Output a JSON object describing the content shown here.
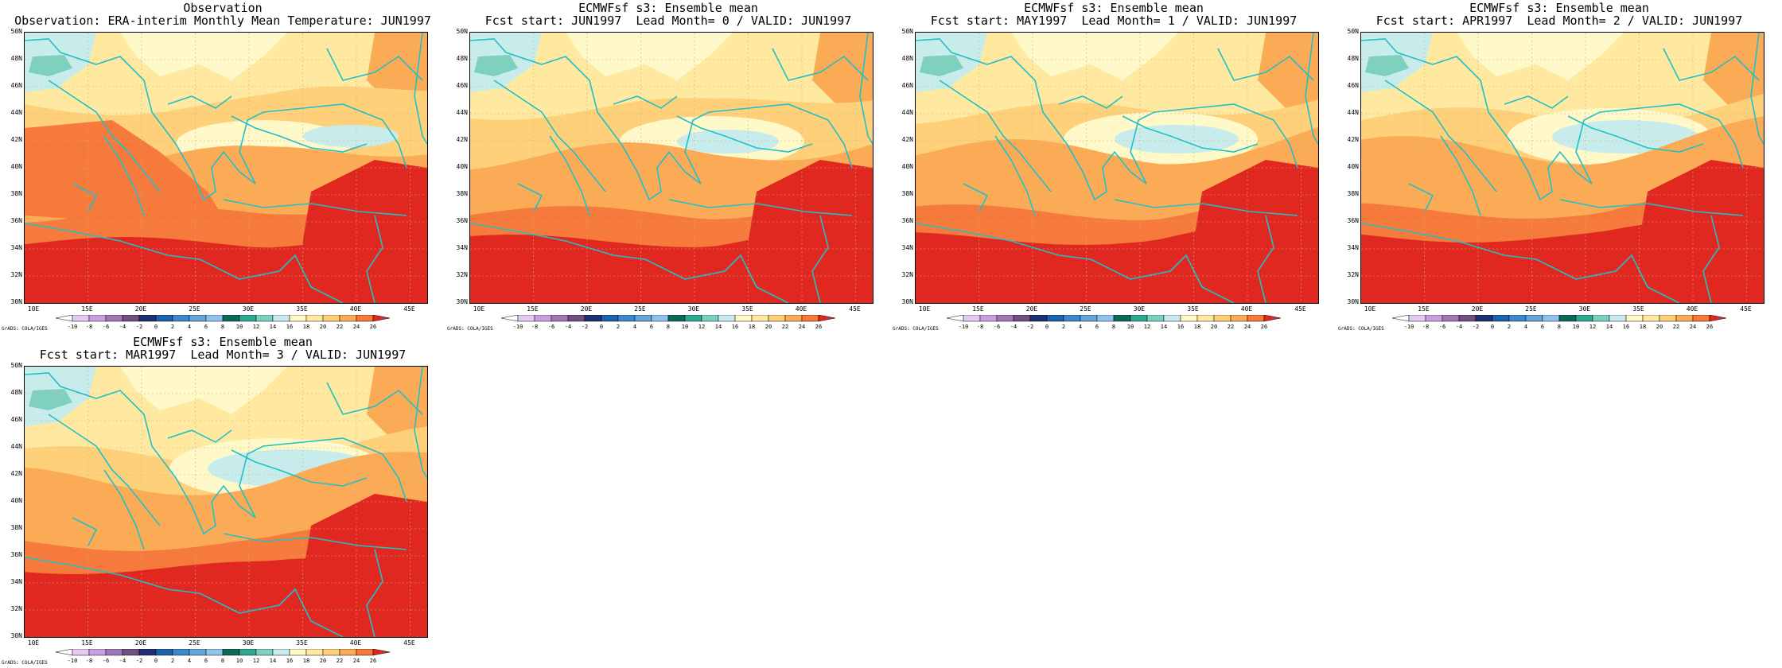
{
  "panels": [
    {
      "title1": "Observation",
      "title2": "Observation: ERA-interim Monthly Mean Temperature: JUN1997",
      "variant": 0
    },
    {
      "title1": "ECMWFsf s3: Ensemble mean",
      "title2": "Fcst start: JUN1997  Lead Month= 0 / VALID: JUN1997",
      "variant": 1
    },
    {
      "title1": "ECMWFsf s3: Ensemble mean",
      "title2": "Fcst start: MAY1997  Lead Month= 1 / VALID: JUN1997",
      "variant": 2
    },
    {
      "title1": "ECMWFsf s3: Ensemble mean",
      "title2": "Fcst start: APR1997  Lead Month= 2 / VALID: JUN1997",
      "variant": 3
    },
    {
      "title1": "ECMWFsf s3: Ensemble mean",
      "title2": "Fcst start: MAR1997  Lead Month= 3 / VALID: JUN1997",
      "variant": 4
    }
  ],
  "lat_labels": [
    "50N",
    "48N",
    "46N",
    "44N",
    "42N",
    "40N",
    "38N",
    "36N",
    "34N",
    "32N",
    "30N"
  ],
  "lon_labels": [
    "10E",
    "15E",
    "20E",
    "25E",
    "30E",
    "35E",
    "40E",
    "45E"
  ],
  "colorbar": {
    "levels": [
      "-10",
      "-8",
      "-6",
      "-4",
      "-2",
      "0",
      "2",
      "4",
      "6",
      "8",
      "10",
      "12",
      "14",
      "16",
      "18",
      "20",
      "22",
      "24",
      "26"
    ],
    "colors": [
      "#ffffff",
      "#e8c8f0",
      "#c8a0e0",
      "#a078b8",
      "#705080",
      "#203070",
      "#2060a8",
      "#3c88c8",
      "#64a4d8",
      "#90c4e8",
      "#106858",
      "#30a890",
      "#80d0c0",
      "#c8ecec",
      "#fff8c8",
      "#ffe8a0",
      "#fed07a",
      "#fbab55",
      "#f57a3c",
      "#e02820"
    ]
  },
  "credit": "GrADS: COLA/IGES"
}
